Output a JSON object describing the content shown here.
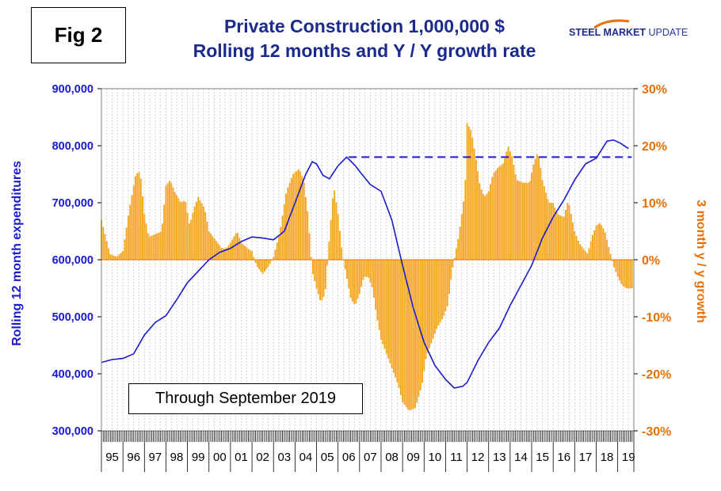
{
  "figure_label": "Fig 2",
  "title_line1": "Private Construction 1,000,000 $",
  "title_line2": "Rolling 12 months and Y / Y growth rate",
  "logo": {
    "bold": "STEEL MARKET",
    "thin": "UPDATE"
  },
  "note": "Through September 2019",
  "colors": {
    "title": "#1c2a8c",
    "rolling_line": "#1a1ad0",
    "growth_bars": "#f5a623",
    "right_axis": "#e8700a",
    "dashed_ref": "#1a1ad0"
  },
  "chart_data": {
    "type": "bar+line",
    "ylabel_left": "Rolling 12 month expenditures",
    "ylabel_right": "3 month y / y growth",
    "left_axis": {
      "min": 300000,
      "max": 900000,
      "ticks": [
        300000,
        400000,
        500000,
        600000,
        700000,
        800000,
        900000
      ],
      "tick_labels": [
        "300,000",
        "400,000",
        "500,000",
        "600,000",
        "700,000",
        "800,000",
        "900,000"
      ]
    },
    "right_axis": {
      "min": -30,
      "max": 30,
      "ticks": [
        -30,
        -20,
        -10,
        0,
        10,
        20,
        30
      ],
      "tick_labels": [
        "-30%",
        "-20%",
        "-10%",
        "0%",
        "10%",
        "20%",
        "30%"
      ]
    },
    "x_categories": [
      "95",
      "96",
      "97",
      "98",
      "99",
      "00",
      "01",
      "02",
      "03",
      "04",
      "05",
      "06",
      "07",
      "08",
      "09",
      "10",
      "11",
      "12",
      "13",
      "14",
      "15",
      "16",
      "17",
      "18",
      "19"
    ],
    "x_start": 1995.0,
    "x_end": 2019.75,
    "reference_line": {
      "value": 780000,
      "from": 2006.5,
      "to": 2019.65,
      "style": "dashed"
    },
    "series": [
      {
        "name": "Rolling 12 month expenditures",
        "axis": "left",
        "type": "line",
        "points": [
          [
            1995.0,
            420000
          ],
          [
            1995.5,
            425000
          ],
          [
            1996.0,
            427000
          ],
          [
            1996.5,
            435000
          ],
          [
            1997.0,
            468000
          ],
          [
            1997.5,
            490000
          ],
          [
            1998.0,
            502000
          ],
          [
            1998.5,
            530000
          ],
          [
            1999.0,
            560000
          ],
          [
            1999.5,
            580000
          ],
          [
            2000.0,
            600000
          ],
          [
            2000.5,
            613000
          ],
          [
            2001.0,
            620000
          ],
          [
            2001.5,
            632000
          ],
          [
            2002.0,
            640000
          ],
          [
            2002.5,
            638000
          ],
          [
            2003.0,
            635000
          ],
          [
            2003.5,
            650000
          ],
          [
            2004.0,
            700000
          ],
          [
            2004.5,
            750000
          ],
          [
            2004.8,
            772000
          ],
          [
            2005.0,
            768000
          ],
          [
            2005.3,
            748000
          ],
          [
            2005.6,
            742000
          ],
          [
            2006.0,
            765000
          ],
          [
            2006.4,
            780000
          ],
          [
            2006.8,
            765000
          ],
          [
            2007.0,
            755000
          ],
          [
            2007.5,
            732000
          ],
          [
            2008.0,
            720000
          ],
          [
            2008.5,
            670000
          ],
          [
            2009.0,
            590000
          ],
          [
            2009.5,
            515000
          ],
          [
            2010.0,
            455000
          ],
          [
            2010.5,
            415000
          ],
          [
            2011.0,
            390000
          ],
          [
            2011.4,
            375000
          ],
          [
            2011.8,
            378000
          ],
          [
            2012.0,
            385000
          ],
          [
            2012.5,
            423000
          ],
          [
            2013.0,
            455000
          ],
          [
            2013.5,
            480000
          ],
          [
            2014.0,
            520000
          ],
          [
            2014.5,
            555000
          ],
          [
            2015.0,
            590000
          ],
          [
            2015.5,
            638000
          ],
          [
            2016.0,
            675000
          ],
          [
            2016.5,
            705000
          ],
          [
            2017.0,
            740000
          ],
          [
            2017.5,
            768000
          ],
          [
            2018.0,
            778000
          ],
          [
            2018.5,
            808000
          ],
          [
            2018.8,
            810000
          ],
          [
            2019.1,
            805000
          ],
          [
            2019.5,
            795000
          ]
        ]
      },
      {
        "name": "3 month y / y growth",
        "axis": "right",
        "type": "bar",
        "points": [
          [
            1995.0,
            7
          ],
          [
            1995.2,
            4
          ],
          [
            1995.4,
            1
          ],
          [
            1995.7,
            0.5
          ],
          [
            1996.0,
            1.5
          ],
          [
            1996.3,
            9
          ],
          [
            1996.6,
            15
          ],
          [
            1996.8,
            15.5
          ],
          [
            1997.0,
            8
          ],
          [
            1997.2,
            4
          ],
          [
            1997.5,
            4.5
          ],
          [
            1997.8,
            5
          ],
          [
            1998.0,
            13
          ],
          [
            1998.2,
            14
          ],
          [
            1998.4,
            12
          ],
          [
            1998.7,
            10
          ],
          [
            1998.9,
            10.5
          ],
          [
            1999.1,
            6
          ],
          [
            1999.3,
            9
          ],
          [
            1999.5,
            11
          ],
          [
            1999.8,
            9
          ],
          [
            2000.0,
            5
          ],
          [
            2000.3,
            3.5
          ],
          [
            2000.6,
            2
          ],
          [
            2000.8,
            2
          ],
          [
            2001.0,
            3
          ],
          [
            2001.3,
            5
          ],
          [
            2001.5,
            3
          ],
          [
            2001.8,
            2
          ],
          [
            2002.0,
            1.5
          ],
          [
            2002.2,
            -1
          ],
          [
            2002.5,
            -2.5
          ],
          [
            2002.8,
            -1
          ],
          [
            2003.0,
            0.5
          ],
          [
            2003.3,
            5
          ],
          [
            2003.6,
            12
          ],
          [
            2003.9,
            15
          ],
          [
            2004.2,
            16
          ],
          [
            2004.4,
            14
          ],
          [
            2004.6,
            8
          ],
          [
            2004.8,
            -2
          ],
          [
            2005.0,
            -5
          ],
          [
            2005.2,
            -7.5
          ],
          [
            2005.4,
            -6
          ],
          [
            2005.6,
            4
          ],
          [
            2005.8,
            13
          ],
          [
            2006.0,
            8
          ],
          [
            2006.2,
            1
          ],
          [
            2006.4,
            -3
          ],
          [
            2006.6,
            -7
          ],
          [
            2006.8,
            -8
          ],
          [
            2007.0,
            -6
          ],
          [
            2007.2,
            -3
          ],
          [
            2007.4,
            -3
          ],
          [
            2007.6,
            -5
          ],
          [
            2007.8,
            -10
          ],
          [
            2008.0,
            -14
          ],
          [
            2008.2,
            -16
          ],
          [
            2008.5,
            -19
          ],
          [
            2008.8,
            -22
          ],
          [
            2009.0,
            -25
          ],
          [
            2009.3,
            -26.5
          ],
          [
            2009.6,
            -26
          ],
          [
            2009.9,
            -22
          ],
          [
            2010.1,
            -17
          ],
          [
            2010.3,
            -15
          ],
          [
            2010.6,
            -12
          ],
          [
            2010.9,
            -10
          ],
          [
            2011.1,
            -8
          ],
          [
            2011.3,
            -2
          ],
          [
            2011.6,
            4
          ],
          [
            2011.9,
            12
          ],
          [
            2012.0,
            24
          ],
          [
            2012.2,
            22.5
          ],
          [
            2012.4,
            18
          ],
          [
            2012.6,
            13
          ],
          [
            2012.8,
            11
          ],
          [
            2013.0,
            12
          ],
          [
            2013.2,
            15
          ],
          [
            2013.4,
            16
          ],
          [
            2013.7,
            17
          ],
          [
            2013.9,
            20
          ],
          [
            2014.1,
            18
          ],
          [
            2014.3,
            14
          ],
          [
            2014.6,
            13.5
          ],
          [
            2014.9,
            13.5
          ],
          [
            2015.1,
            17
          ],
          [
            2015.3,
            19
          ],
          [
            2015.5,
            14
          ],
          [
            2015.8,
            10
          ],
          [
            2016.0,
            10
          ],
          [
            2016.2,
            8
          ],
          [
            2016.5,
            7.5
          ],
          [
            2016.7,
            10.5
          ],
          [
            2017.0,
            5
          ],
          [
            2017.2,
            3
          ],
          [
            2017.4,
            2
          ],
          [
            2017.6,
            1
          ],
          [
            2017.8,
            4
          ],
          [
            2018.0,
            6
          ],
          [
            2018.2,
            6.5
          ],
          [
            2018.4,
            5
          ],
          [
            2018.6,
            2
          ],
          [
            2018.8,
            -1
          ],
          [
            2019.0,
            -3
          ],
          [
            2019.2,
            -4.5
          ],
          [
            2019.4,
            -5
          ]
        ]
      }
    ]
  }
}
